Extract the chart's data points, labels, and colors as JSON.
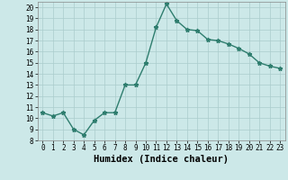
{
  "x": [
    0,
    1,
    2,
    3,
    4,
    5,
    6,
    7,
    8,
    9,
    10,
    11,
    12,
    13,
    14,
    15,
    16,
    17,
    18,
    19,
    20,
    21,
    22,
    23
  ],
  "y": [
    10.5,
    10.2,
    10.5,
    9.0,
    8.5,
    9.8,
    10.5,
    10.5,
    13.0,
    13.0,
    15.0,
    18.2,
    20.3,
    18.8,
    18.0,
    17.9,
    17.1,
    17.0,
    16.7,
    16.3,
    15.8,
    15.0,
    14.7,
    14.5
  ],
  "line_color": "#2e7d6e",
  "marker": "*",
  "marker_size": 3.5,
  "bg_color": "#cce8e8",
  "grid_color": "#aacccc",
  "xlabel": "Humidex (Indice chaleur)",
  "ylim": [
    8,
    20.5
  ],
  "xlim": [
    -0.5,
    23.5
  ],
  "yticks": [
    8,
    9,
    10,
    11,
    12,
    13,
    14,
    15,
    16,
    17,
    18,
    19,
    20
  ],
  "xticks": [
    0,
    1,
    2,
    3,
    4,
    5,
    6,
    7,
    8,
    9,
    10,
    11,
    12,
    13,
    14,
    15,
    16,
    17,
    18,
    19,
    20,
    21,
    22,
    23
  ],
  "tick_label_fontsize": 5.5,
  "xlabel_fontsize": 7.5,
  "line_width": 1.0
}
